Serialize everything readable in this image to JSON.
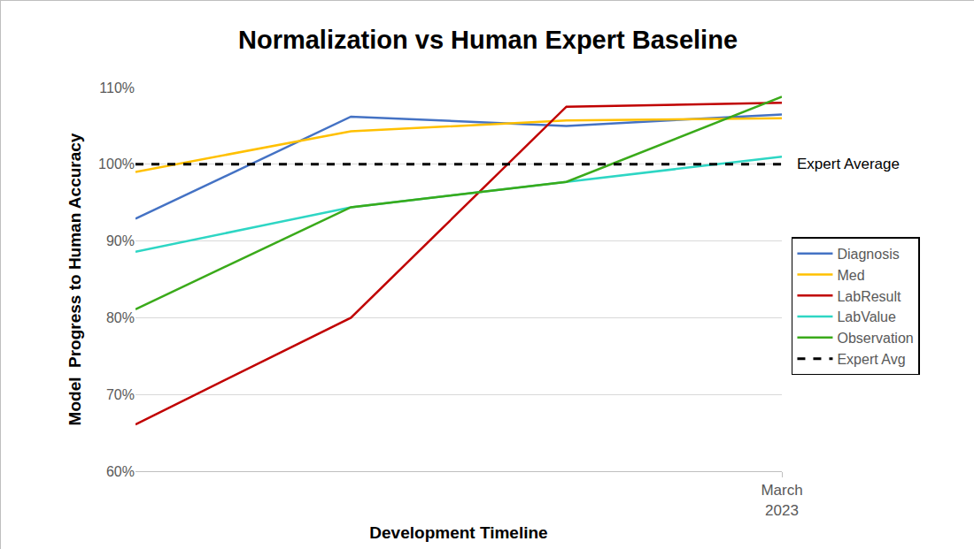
{
  "chart_data": {
    "type": "line",
    "title": "Normalization vs Human Expert Baseline",
    "x_label": "Development Timeline",
    "y_label": "Model  Progress to Human Accuracy",
    "categories": [
      null,
      null,
      null,
      "March 2023"
    ],
    "series": [
      {
        "name": "Diagnosis",
        "color": "#4472C4",
        "line_style": "solid",
        "values": [
          92.9,
          106.2,
          105.0,
          106.5
        ]
      },
      {
        "name": "Med",
        "color": "#FFC000",
        "line_style": "solid",
        "values": [
          99.0,
          104.3,
          105.7,
          106.0
        ]
      },
      {
        "name": "LabResult",
        "color": "#C00000",
        "line_style": "solid",
        "values": [
          66.1,
          80.0,
          107.5,
          108.0
        ]
      },
      {
        "name": "LabValue",
        "color": "#2ED6C4",
        "line_style": "solid",
        "values": [
          88.6,
          94.4,
          97.7,
          101.0
        ]
      },
      {
        "name": "Observation",
        "color": "#3AAA1A",
        "line_style": "solid",
        "values": [
          81.1,
          94.4,
          97.7,
          108.8
        ]
      },
      {
        "name": "Expert Avg",
        "color": "#000000",
        "line_style": "dashed",
        "values": [
          100,
          100,
          100,
          100
        ]
      }
    ],
    "ylim": [
      60,
      110
    ],
    "yticks": [
      {
        "value": 60,
        "label": "60%"
      },
      {
        "value": 70,
        "label": "70%"
      },
      {
        "value": 80,
        "label": "80%"
      },
      {
        "value": 90,
        "label": "90%"
      },
      {
        "value": 100,
        "label": "100%"
      },
      {
        "value": 110,
        "label": "110%"
      }
    ],
    "grid": true,
    "legend": "right",
    "annotations": [
      {
        "text": "Expert Average",
        "y": 100
      }
    ]
  }
}
